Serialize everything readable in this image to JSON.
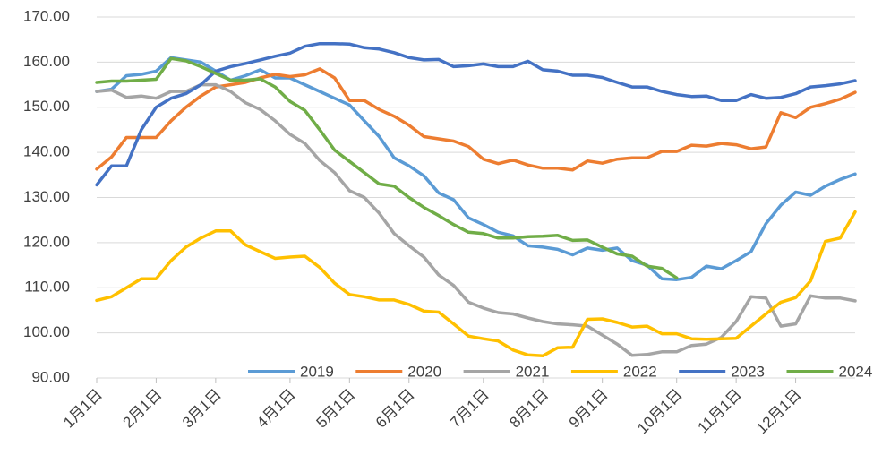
{
  "chart_data": {
    "type": "line",
    "categories": [
      "1月1日",
      null,
      null,
      null,
      "2月1日",
      null,
      null,
      null,
      "3月1日",
      null,
      null,
      null,
      null,
      "4月1日",
      null,
      null,
      null,
      "5月1日",
      null,
      null,
      null,
      "6月1日",
      null,
      null,
      null,
      null,
      "7月1日",
      null,
      null,
      null,
      "8月1日",
      null,
      null,
      null,
      "9月1日",
      null,
      null,
      null,
      null,
      "10月1日",
      null,
      null,
      null,
      "11月1日",
      null,
      null,
      null,
      "12月1日",
      null,
      null,
      null,
      null
    ],
    "series": [
      {
        "name": "2019",
        "color": "#5b9bd5",
        "values": [
          153.5,
          154,
          157,
          157.3,
          158,
          161,
          160.5,
          160,
          158,
          156,
          157,
          158.3,
          156.5,
          156.5,
          155,
          153.5,
          152,
          150.5,
          147,
          143.5,
          138.8,
          137,
          134.8,
          131,
          129.5,
          125.5,
          124,
          122.3,
          121.5,
          119.3,
          119,
          118.5,
          117.3,
          118.8,
          118.3,
          118.8,
          116,
          115,
          112,
          111.8,
          112.3,
          114.8,
          114.2,
          116,
          118,
          124.2,
          128.3,
          131.2,
          130.5,
          132.5,
          134,
          135.2
        ]
      },
      {
        "name": "2020",
        "color": "#ed7d31",
        "values": [
          136.3,
          139,
          143.3,
          143.3,
          143.3,
          147,
          150,
          152.5,
          154.5,
          155,
          155.5,
          156.5,
          157.3,
          156.8,
          157.2,
          158.5,
          156.5,
          151.5,
          151.5,
          149.5,
          148,
          146,
          143.5,
          143,
          142.5,
          141.3,
          138.5,
          137.5,
          138.3,
          137.2,
          136.5,
          136.5,
          136.1,
          138.1,
          137.6,
          138.5,
          138.8,
          138.8,
          140.2,
          140.2,
          141.6,
          141.4,
          142,
          141.7,
          140.8,
          141.2,
          148.8,
          147.7,
          150,
          150.8,
          151.8,
          153.3
        ]
      },
      {
        "name": "2021",
        "color": "#a5a5a5",
        "values": [
          153.5,
          153.8,
          152.2,
          152.5,
          152,
          153.5,
          153.5,
          155,
          155,
          153.5,
          151,
          149.5,
          147,
          144,
          142,
          138.2,
          135.5,
          131.5,
          130,
          126.5,
          122,
          119.3,
          116.8,
          112.8,
          110.5,
          106.8,
          105.5,
          104.5,
          104.2,
          103.3,
          102.5,
          102,
          101.8,
          101.5,
          99.5,
          97.5,
          95,
          95.2,
          95.8,
          95.8,
          97.2,
          97.5,
          99,
          102.5,
          108,
          107.7,
          101.5,
          102,
          108.2,
          107.7,
          107.7,
          107.1
        ]
      },
      {
        "name": "2022",
        "color": "#ffc000",
        "values": [
          107.2,
          108,
          110,
          112,
          112,
          116,
          119,
          121,
          122.6,
          122.6,
          119.5,
          118,
          116.5,
          116.8,
          117,
          114.5,
          111,
          108.5,
          108,
          107.3,
          107.3,
          106.3,
          104.8,
          104.6,
          102,
          99.3,
          98.7,
          98.2,
          96.2,
          95.1,
          94.9,
          96.7,
          96.8,
          103,
          103.1,
          102.3,
          101.3,
          101.5,
          99.8,
          99.8,
          98.7,
          98.6,
          98.7,
          98.8,
          101.5,
          104.2,
          106.8,
          107.8,
          111.5,
          120.3,
          121,
          126.8
        ]
      },
      {
        "name": "2023",
        "color": "#4472c4",
        "values": [
          132.8,
          137,
          137,
          145,
          150,
          152,
          153,
          155,
          158,
          159,
          159.7,
          160.5,
          161.3,
          162,
          163.5,
          164.1,
          164.1,
          164,
          163.2,
          162.9,
          162.1,
          161,
          160.5,
          160.6,
          159,
          159.2,
          159.6,
          159,
          159,
          160.2,
          158.3,
          158,
          157.1,
          157.1,
          156.6,
          155.5,
          154.5,
          154.5,
          153.5,
          152.8,
          152.4,
          152.5,
          151.5,
          151.5,
          152.8,
          152,
          152.2,
          153,
          154.5,
          154.8,
          155.2,
          155.9
        ]
      },
      {
        "name": "2024",
        "color": "#70ad47",
        "values": [
          155.5,
          155.8,
          155.8,
          156,
          156.2,
          160.8,
          160.3,
          159,
          157.5,
          156,
          156,
          156.3,
          154.5,
          151.3,
          149.3,
          145,
          140.5,
          138,
          135.5,
          133,
          132.5,
          130,
          127.8,
          126,
          124,
          122.3,
          122,
          121,
          121,
          121.3,
          121.4,
          121.6,
          120.5,
          120.6,
          119,
          117.5,
          117,
          114.8,
          114.3,
          112.2,
          null,
          null,
          null,
          null,
          null,
          null,
          null,
          null,
          null,
          null,
          null,
          null
        ]
      }
    ],
    "ylim": [
      90,
      170
    ],
    "yticks": [
      {
        "value": 90,
        "label": "90.00"
      },
      {
        "value": 100,
        "label": "100.00"
      },
      {
        "value": 110,
        "label": "110.00"
      },
      {
        "value": 120,
        "label": "120.00"
      },
      {
        "value": 130,
        "label": "130.00"
      },
      {
        "value": 140,
        "label": "140.00"
      },
      {
        "value": 150,
        "label": "150.00"
      },
      {
        "value": 160,
        "label": "160.00"
      },
      {
        "value": 170,
        "label": "170.00"
      }
    ],
    "grid": true,
    "legend": "bottom"
  }
}
